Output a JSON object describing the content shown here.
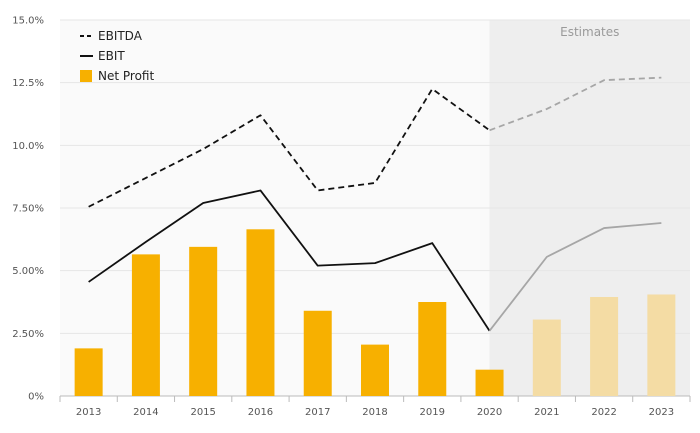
{
  "chart_data": {
    "type": "bar",
    "categories": [
      "2013",
      "2014",
      "2015",
      "2016",
      "2017",
      "2018",
      "2019",
      "2020",
      "2021",
      "2022",
      "2023"
    ],
    "estimate_start_index": 8,
    "estimate_shading_from": "2020",
    "estimates_label": "Estimates",
    "ylim": [
      0,
      15
    ],
    "y_ticks": [
      0,
      2.5,
      5,
      7.5,
      10,
      12.5,
      15
    ],
    "y_tick_labels": [
      "0%",
      "2.50%",
      "5.00%",
      "7.50%",
      "10.0%",
      "12.5%",
      "15.0%"
    ],
    "series": [
      {
        "name": "EBITDA",
        "kind": "line",
        "style": "dashed",
        "values": [
          7.55,
          8.7,
          9.85,
          11.2,
          8.2,
          8.5,
          12.25,
          10.6,
          11.45,
          12.6,
          12.7
        ]
      },
      {
        "name": "EBIT",
        "kind": "line",
        "style": "solid",
        "values": [
          4.55,
          6.15,
          7.7,
          8.2,
          5.2,
          5.3,
          6.1,
          2.6,
          5.55,
          6.7,
          6.9
        ]
      },
      {
        "name": "Net Profit",
        "kind": "bar",
        "values": [
          1.9,
          5.65,
          5.95,
          6.65,
          3.4,
          2.05,
          3.75,
          1.05,
          3.05,
          3.95,
          4.05
        ]
      }
    ],
    "legend": [
      {
        "label": "EBITDA",
        "marker": "dashed-line"
      },
      {
        "label": "EBIT",
        "marker": "solid-line"
      },
      {
        "label": "Net Profit",
        "marker": "square"
      }
    ],
    "legend_position": "top-left",
    "grid": true,
    "colors": {
      "bar": "#f7b000",
      "bar_estimate": "#f4dca4",
      "line": "#111111",
      "line_estimate": "#a6a6a6",
      "estimate_bg": "#eeeeee",
      "plot_bg": "#fafafa",
      "grid": "#e6e6e6"
    }
  }
}
